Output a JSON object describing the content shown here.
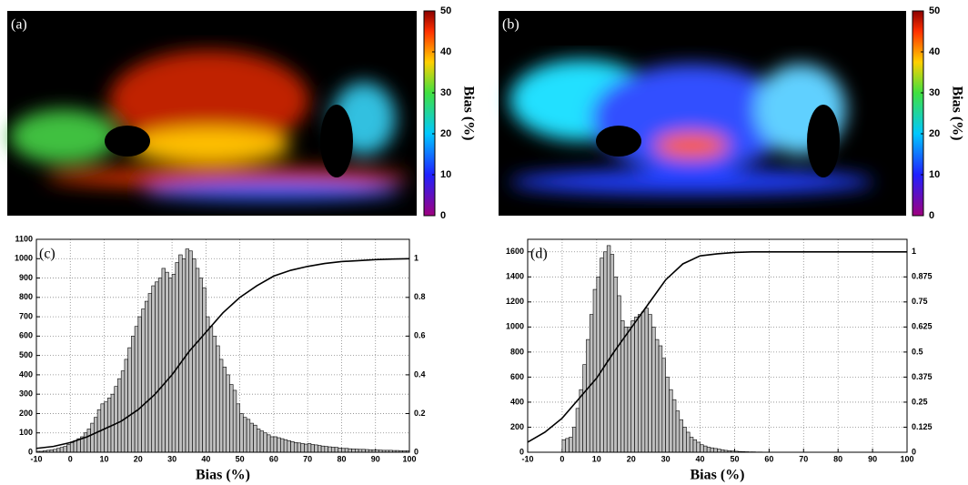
{
  "chart_data": [
    {
      "type": "heatmap",
      "label": "(a)",
      "colorbar_label": "Bias (%)",
      "clim": [
        0,
        50
      ],
      "cticks": [
        0,
        10,
        20,
        30,
        40,
        50
      ]
    },
    {
      "type": "heatmap",
      "label": "(b)",
      "colorbar_label": "Bias (%)",
      "clim": [
        0,
        50
      ],
      "cticks": [
        0,
        10,
        20,
        30,
        40,
        50
      ]
    },
    {
      "type": "histogram",
      "label": "(c)",
      "xlabel": "Bias (%)",
      "color": "#bfbfbf",
      "grid": true,
      "xlim": [
        -10,
        100
      ],
      "xticks": [
        -10,
        0,
        10,
        20,
        30,
        40,
        50,
        60,
        70,
        80,
        90,
        100
      ],
      "ylim": [
        0,
        1100
      ],
      "yticks": [
        0,
        100,
        200,
        300,
        400,
        500,
        600,
        700,
        800,
        900,
        1000,
        1100
      ],
      "y2lim": [
        0,
        1.1
      ],
      "y2ticks": [
        0,
        0.2,
        0.4,
        0.6,
        0.8,
        1
      ],
      "bins": [
        -10,
        -9,
        -8,
        -7,
        -6,
        -5,
        -4,
        -3,
        -2,
        -1,
        0,
        1,
        2,
        3,
        4,
        5,
        6,
        7,
        8,
        9,
        10,
        11,
        12,
        13,
        14,
        15,
        16,
        17,
        18,
        19,
        20,
        21,
        22,
        23,
        24,
        25,
        26,
        27,
        28,
        29,
        30,
        31,
        32,
        33,
        34,
        35,
        36,
        37,
        38,
        39,
        40,
        41,
        42,
        43,
        44,
        45,
        46,
        47,
        48,
        49,
        50,
        51,
        52,
        53,
        54,
        55,
        56,
        57,
        58,
        59,
        60,
        61,
        62,
        63,
        64,
        65,
        66,
        67,
        68,
        69,
        70,
        71,
        72,
        73,
        74,
        75,
        76,
        77,
        78,
        79,
        80,
        81,
        82,
        83,
        84,
        85,
        86,
        87,
        88,
        89,
        90,
        91,
        92,
        93,
        94,
        95,
        96,
        97,
        98,
        99,
        100
      ],
      "values": [
        5,
        5,
        8,
        10,
        12,
        15,
        20,
        25,
        30,
        40,
        50,
        60,
        70,
        80,
        100,
        120,
        150,
        180,
        220,
        250,
        260,
        280,
        300,
        340,
        380,
        420,
        480,
        540,
        600,
        650,
        700,
        740,
        780,
        820,
        860,
        880,
        900,
        950,
        930,
        900,
        920,
        980,
        1020,
        1000,
        1050,
        1040,
        1000,
        950,
        900,
        850,
        700,
        650,
        600,
        550,
        480,
        440,
        400,
        350,
        320,
        250,
        200,
        180,
        170,
        150,
        140,
        120,
        110,
        100,
        90,
        80,
        80,
        75,
        70,
        65,
        60,
        55,
        50,
        48,
        45,
        42,
        45,
        40,
        38,
        35,
        32,
        30,
        28,
        26,
        25,
        22,
        20,
        20,
        18,
        17,
        16,
        15,
        15,
        14,
        13,
        12,
        12,
        11,
        10,
        10,
        10,
        9,
        9,
        8,
        8,
        8
      ],
      "cdf": {
        "color": "#000000",
        "x": [
          -10,
          -5,
          0,
          5,
          10,
          15,
          20,
          25,
          30,
          35,
          40,
          45,
          50,
          55,
          60,
          65,
          70,
          75,
          80,
          85,
          90,
          95,
          100
        ],
        "values": [
          0.02,
          0.03,
          0.05,
          0.08,
          0.12,
          0.16,
          0.22,
          0.3,
          0.4,
          0.52,
          0.62,
          0.72,
          0.8,
          0.86,
          0.91,
          0.94,
          0.96,
          0.975,
          0.985,
          0.99,
          0.995,
          0.998,
          1
        ]
      }
    },
    {
      "type": "histogram",
      "label": "(d)",
      "xlabel": "Bias (%)",
      "color": "#bfbfbf",
      "grid": true,
      "xlim": [
        -10,
        100
      ],
      "xticks": [
        -10,
        0,
        10,
        20,
        30,
        40,
        50,
        60,
        70,
        80,
        90,
        100
      ],
      "ylim": [
        0,
        1700
      ],
      "yticks": [
        0,
        200,
        400,
        600,
        800,
        1000,
        1200,
        1400,
        1600
      ],
      "y2lim": [
        0,
        1.0625
      ],
      "y2ticks": [
        0,
        0.125,
        0.25,
        0.375,
        0.5,
        0.625,
        0.75,
        0.875,
        1
      ],
      "bins": [
        0,
        1,
        2,
        3,
        4,
        5,
        6,
        7,
        8,
        9,
        10,
        11,
        12,
        13,
        14,
        15,
        16,
        17,
        18,
        19,
        20,
        21,
        22,
        23,
        24,
        25,
        26,
        27,
        28,
        29,
        30,
        31,
        32,
        33,
        34,
        35,
        36,
        37,
        38,
        39,
        40,
        41,
        42,
        43,
        44,
        45,
        46,
        47,
        48,
        49,
        50,
        51,
        52,
        53,
        54,
        55,
        56,
        57,
        58,
        59,
        60
      ],
      "values": [
        100,
        110,
        120,
        200,
        350,
        500,
        700,
        900,
        1100,
        1300,
        1400,
        1550,
        1600,
        1650,
        1580,
        1400,
        1250,
        1050,
        1000,
        1000,
        1050,
        1080,
        1100,
        1120,
        1150,
        1100,
        1000,
        900,
        850,
        750,
        600,
        500,
        420,
        330,
        260,
        200,
        160,
        120,
        100,
        80,
        60,
        50,
        40,
        35,
        30,
        25,
        20,
        15,
        12,
        10,
        8,
        6,
        5,
        4,
        3,
        3,
        2,
        2,
        1,
        1
      ],
      "cdf": {
        "color": "#000000",
        "x": [
          -10,
          -5,
          0,
          5,
          10,
          15,
          20,
          25,
          30,
          35,
          40,
          45,
          50,
          55,
          60,
          65,
          70,
          75,
          80,
          85,
          90,
          95,
          100
        ],
        "values": [
          0.05,
          0.1,
          0.17,
          0.27,
          0.37,
          0.5,
          0.62,
          0.74,
          0.86,
          0.94,
          0.98,
          0.99,
          0.997,
          1,
          1,
          1,
          1,
          1,
          1,
          1,
          1,
          1,
          1
        ]
      }
    }
  ]
}
